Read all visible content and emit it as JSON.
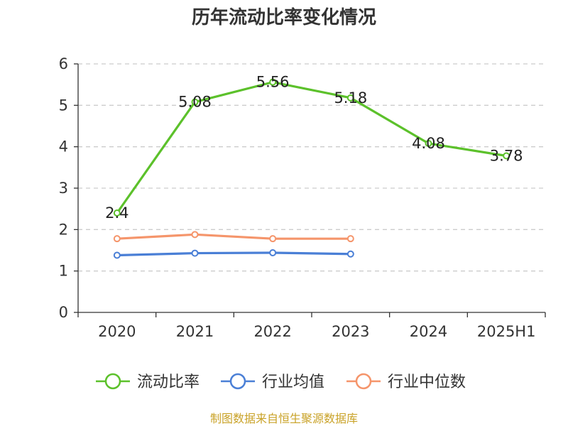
{
  "chart_data": {
    "type": "line",
    "title": "历年流动比率变化情况",
    "categories": [
      "2020",
      "2021",
      "2022",
      "2023",
      "2024",
      "2025H1"
    ],
    "ylim": [
      0,
      6
    ],
    "yticks": [
      "0",
      "1",
      "2",
      "3",
      "4",
      "5",
      "6"
    ],
    "grid": true,
    "legend_position": "bottom",
    "series": [
      {
        "name": "流动比率",
        "color": "#5cc12b",
        "values": [
          2.4,
          5.08,
          5.56,
          5.18,
          4.08,
          3.78
        ],
        "labels": [
          "2.4",
          "5.08",
          "5.56",
          "5.18",
          "4.08",
          "3.78"
        ]
      },
      {
        "name": "行业均值",
        "color": "#4a7fd6",
        "values": [
          1.38,
          1.43,
          1.44,
          1.41,
          null,
          null
        ]
      },
      {
        "name": "行业中位数",
        "color": "#f5956b",
        "values": [
          1.78,
          1.88,
          1.78,
          1.78,
          null,
          null
        ]
      }
    ],
    "source": "制图数据来自恒生聚源数据库",
    "source_color": "#c9a227"
  }
}
